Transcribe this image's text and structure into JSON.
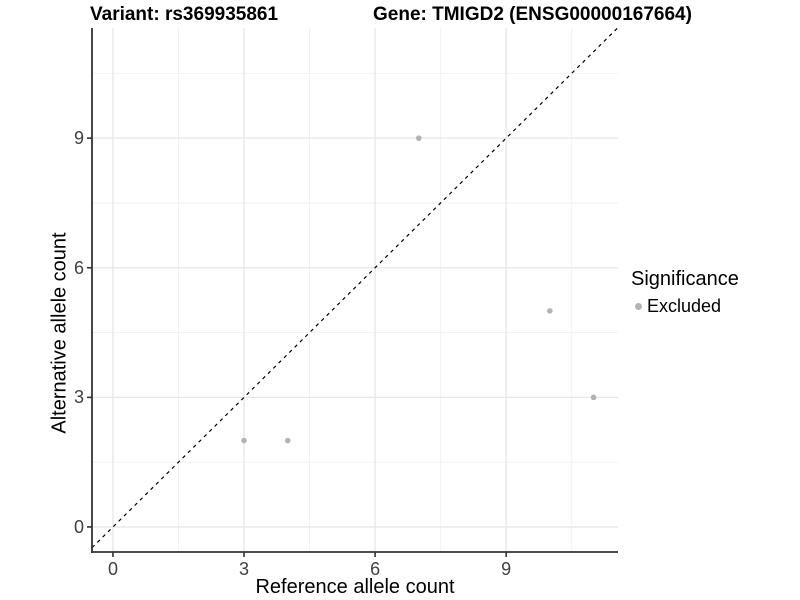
{
  "header": {
    "variant_title": "Variant: rs369935861",
    "gene_title": "Gene: TMIGD2 (ENSG00000167664)"
  },
  "chart_data": {
    "type": "scatter",
    "title_left": "Variant: rs369935861",
    "title_right": "Gene: TMIGD2 (ENSG00000167664)",
    "xlabel": "Reference allele count",
    "ylabel": "Alternative allele count",
    "xlim": [
      -0.48,
      11.56
    ],
    "ylim": [
      -0.58,
      11.55
    ],
    "x_ticks": [
      0,
      3,
      6,
      9
    ],
    "y_ticks": [
      0,
      3,
      6,
      9
    ],
    "x_minor": [
      1.5,
      4.5,
      7.5,
      10.5
    ],
    "y_minor": [
      1.5,
      4.5,
      7.5,
      10.5
    ],
    "grid": true,
    "series": [
      {
        "name": "Excluded",
        "color": "#b3b3b3",
        "points": [
          [
            3,
            2
          ],
          [
            4,
            2
          ],
          [
            7,
            9
          ],
          [
            10,
            5
          ],
          [
            11,
            3
          ]
        ]
      }
    ],
    "identity_line": {
      "slope": 1,
      "intercept": 0,
      "style": "dashed",
      "color": "#000000"
    },
    "legend": {
      "title": "Significance",
      "position": "right",
      "entries": [
        {
          "label": "Excluded",
          "color": "#b3b3b3"
        }
      ]
    },
    "style": {
      "point_color": "#b3b3b3",
      "major_grid_color": "#e7e7e7",
      "minor_grid_color": "#f2f2f2",
      "axis_line_color": "#333333",
      "tick_label_color": "#404040"
    }
  }
}
